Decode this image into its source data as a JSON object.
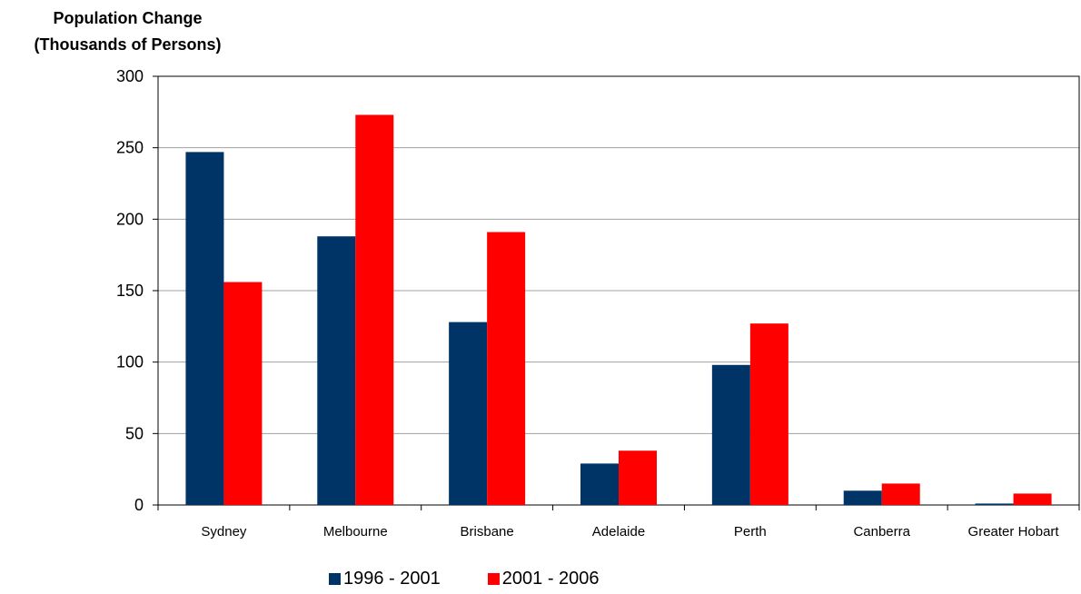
{
  "chart_data": {
    "type": "bar",
    "ylabel_lines": [
      "Population Change",
      "(Thousands of Persons)"
    ],
    "categories": [
      "Sydney",
      "Melbourne",
      "Brisbane",
      "Adelaide",
      "Perth",
      "Canberra",
      "Greater Hobart"
    ],
    "series": [
      {
        "name": "1996 - 2001",
        "color": "#003366",
        "values": [
          247,
          188,
          128,
          29,
          98,
          10,
          1
        ]
      },
      {
        "name": "2001 - 2006",
        "color": "#ff0000",
        "values": [
          156,
          273,
          191,
          38,
          127,
          15,
          8
        ]
      }
    ],
    "ylim": [
      0,
      300
    ],
    "yticks": [
      0,
      50,
      100,
      150,
      200,
      250,
      300
    ],
    "grid": true,
    "legend_position": "bottom"
  }
}
